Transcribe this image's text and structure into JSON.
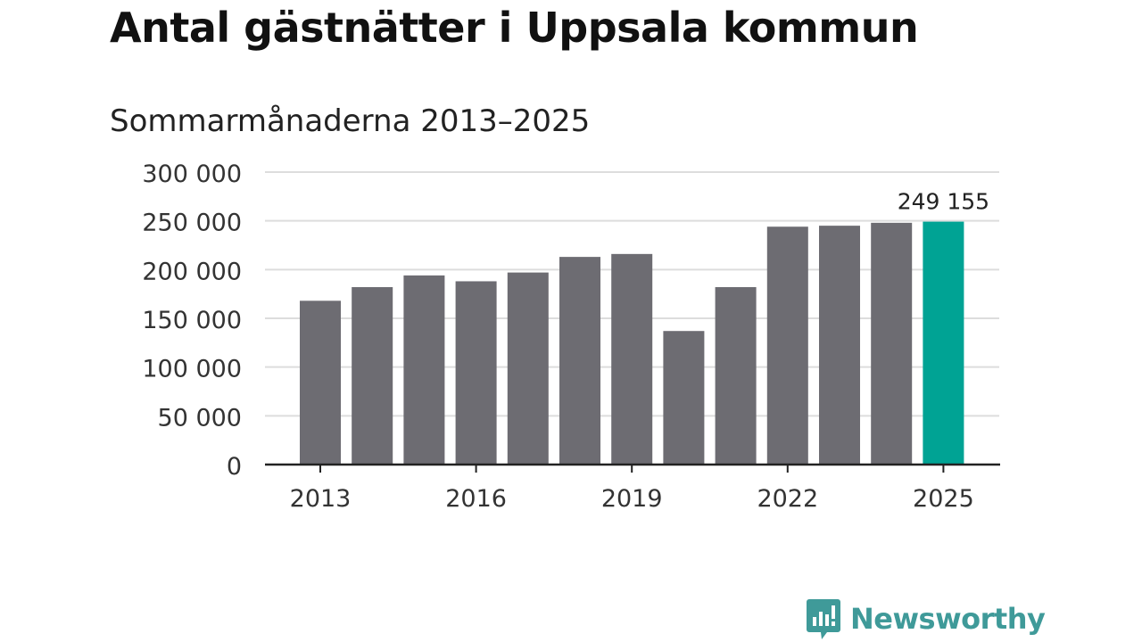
{
  "chart_data": {
    "type": "bar",
    "title": "Antal gästnätter i Uppsala kommun",
    "subtitle": "Sommarmånaderna 2013–2025",
    "xlabel": "",
    "ylabel": "",
    "categories": [
      "2013",
      "2014",
      "2015",
      "2016",
      "2017",
      "2018",
      "2019",
      "2020",
      "2021",
      "2022",
      "2023",
      "2024",
      "2025"
    ],
    "values": [
      168000,
      182000,
      194000,
      188000,
      197000,
      213000,
      216000,
      137000,
      182000,
      244000,
      245000,
      248000,
      249155
    ],
    "ylim": [
      0,
      300000
    ],
    "y_ticks": [
      {
        "value": 0,
        "label": "0"
      },
      {
        "value": 50000,
        "label": "50 000"
      },
      {
        "value": 100000,
        "label": "100 000"
      },
      {
        "value": 150000,
        "label": "150 000"
      },
      {
        "value": 200000,
        "label": "200 000"
      },
      {
        "value": 250000,
        "label": "250 000"
      },
      {
        "value": 300000,
        "label": "300 000"
      }
    ],
    "x_tick_labels": [
      "2013",
      "2016",
      "2019",
      "2022",
      "2025"
    ],
    "grid": true,
    "bar_color": "#6d6c72",
    "highlight_color": "#00a394",
    "highlight_index": 12,
    "annotations": [
      {
        "category": "2025",
        "text": "249 155"
      }
    ]
  },
  "branding": {
    "logo_text": "Newsworthy",
    "logo_color": "#3f9a99"
  }
}
